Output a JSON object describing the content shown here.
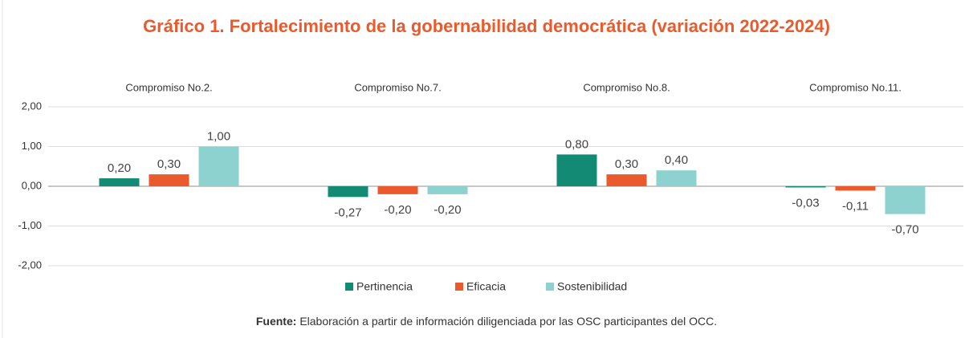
{
  "chart_data": {
    "type": "bar",
    "title": "Gráfico 1. Fortalecimiento de la gobernabilidad democrática (variación 2022-2024)",
    "categories": [
      "Compromiso No.2.",
      "Compromiso No.7.",
      "Compromiso No.8.",
      "Compromiso No.11."
    ],
    "series": [
      {
        "name": "Pertinencia",
        "color": "#138a74",
        "values": [
          0.2,
          -0.27,
          0.8,
          -0.03
        ],
        "value_labels": [
          "0,20",
          "-0,27",
          "0,80",
          "-0,03"
        ]
      },
      {
        "name": "Eficacia",
        "color": "#ea5a2c",
        "values": [
          0.3,
          -0.2,
          0.3,
          -0.11
        ],
        "value_labels": [
          "0,30",
          "-0,20",
          "0,30",
          "-0,11"
        ]
      },
      {
        "name": "Sostenibilidad",
        "color": "#8dd2cf",
        "values": [
          1.0,
          -0.2,
          0.4,
          -0.7
        ],
        "value_labels": [
          "1,00",
          "-0,20",
          "0,40",
          "-0,70"
        ]
      }
    ],
    "ylim": [
      -2,
      2
    ],
    "yticks": [
      {
        "value": -2,
        "label": "-2,00"
      },
      {
        "value": -1,
        "label": "-1,00"
      },
      {
        "value": 0,
        "label": "0,00"
      },
      {
        "value": 1,
        "label": "1,00"
      },
      {
        "value": 2,
        "label": "2,00"
      }
    ],
    "grid": true,
    "legend": "bottom",
    "source_label": "Fuente:",
    "source_text": "Elaboración a partir de información diligenciada por las OSC participantes del OCC."
  }
}
